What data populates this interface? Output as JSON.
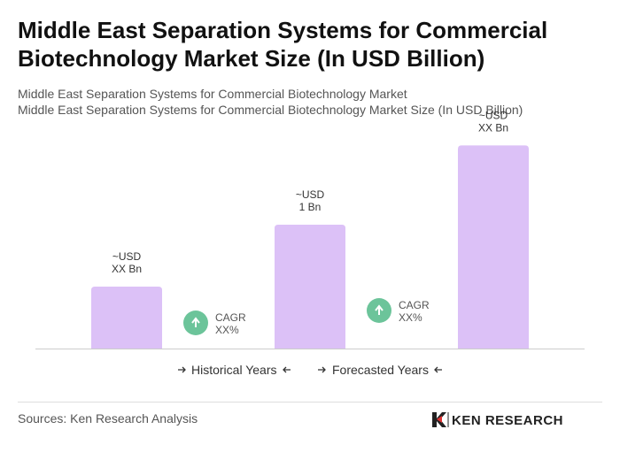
{
  "title": "Middle East Separation Systems for Commercial Biotechnology Market Size (In USD Billion)",
  "subtitle": [
    "Middle East Separation Systems for Commercial Biotechnology Market",
    "Middle East Separation Systems for Commercial Biotechnology Market Size (In USD Billion)"
  ],
  "chart_data": {
    "type": "bar",
    "values": [
      0.5,
      1,
      1.64
    ],
    "value_labels": [
      [
        "~USD",
        "XX Bn"
      ],
      [
        "~USD",
        "1 Bn"
      ],
      [
        "~USD",
        "XX Bn"
      ]
    ],
    "color": "#dcc1f7",
    "cagr": [
      [
        "CAGR",
        "XX%"
      ],
      [
        "CAGR",
        "XX%"
      ]
    ],
    "legend": [
      "Historical Years",
      "Forecasted Years"
    ]
  },
  "source": "Sources: Ken Research Analysis",
  "logo": "KEN RESEARCH"
}
